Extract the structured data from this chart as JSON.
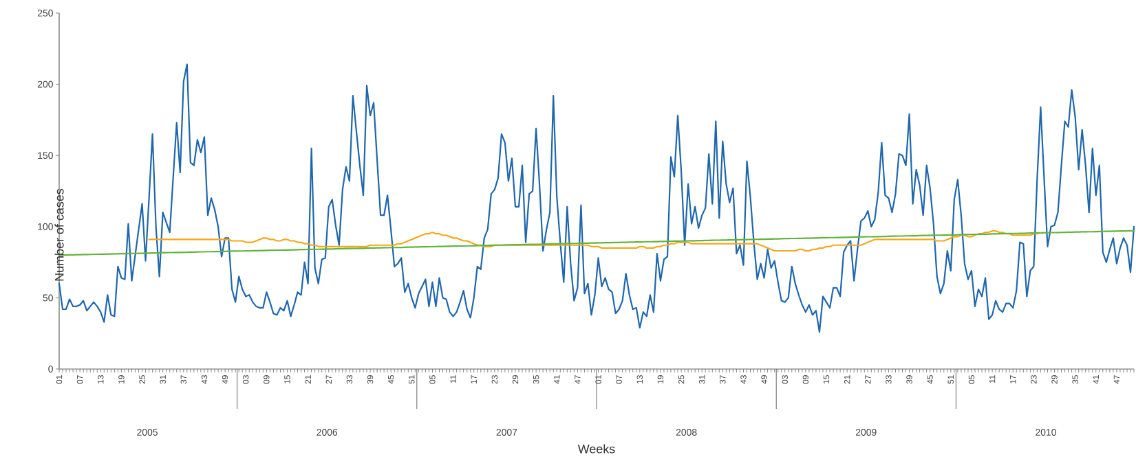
{
  "chart_data": {
    "type": "line",
    "xlabel": "Weeks",
    "ylabel": "Number of cases",
    "categories": [
      "01",
      null,
      null,
      null,
      null,
      null,
      "07",
      null,
      null,
      null,
      null,
      null,
      "13",
      null,
      null,
      null,
      null,
      null,
      "19",
      null,
      null,
      null,
      null,
      null,
      "25",
      null,
      null,
      null,
      null,
      null,
      "31",
      null,
      null,
      null,
      null,
      null,
      "37",
      null,
      null,
      null,
      null,
      null,
      "43",
      null,
      null,
      null,
      null,
      null,
      "49",
      null,
      null,
      null,
      null,
      null,
      "03",
      null,
      null,
      null,
      null,
      null,
      "09",
      null,
      null,
      null,
      null,
      null,
      "15",
      null,
      null,
      null,
      null,
      null,
      "21",
      null,
      null,
      null,
      null,
      null,
      "27",
      null,
      null,
      null,
      null,
      null,
      "33",
      null,
      null,
      null,
      null,
      null,
      "39",
      null,
      null,
      null,
      null,
      null,
      "45",
      null,
      null,
      null,
      null,
      null,
      "51",
      null,
      null,
      null,
      null,
      null,
      "05",
      null,
      null,
      null,
      null,
      null,
      "11",
      null,
      null,
      null,
      null,
      null,
      "17",
      null,
      null,
      null,
      null,
      null,
      "23",
      null,
      null,
      null,
      null,
      null,
      "29",
      null,
      null,
      null,
      null,
      null,
      "35",
      null,
      null,
      null,
      null,
      null,
      "41",
      null,
      null,
      null,
      null,
      null,
      "47",
      null,
      null,
      null,
      null,
      null,
      "01",
      null,
      null,
      null,
      null,
      null,
      "07",
      null,
      null,
      null,
      null,
      null,
      "13",
      null,
      null,
      null,
      null,
      null,
      "19",
      null,
      null,
      null,
      null,
      null,
      "25",
      null,
      null,
      null,
      null,
      null,
      "31",
      null,
      null,
      null,
      null,
      null,
      "37",
      null,
      null,
      null,
      null,
      null,
      "43",
      null,
      null,
      null,
      null,
      null,
      "49",
      null,
      null,
      null,
      null,
      null,
      "03",
      null,
      null,
      null,
      null,
      null,
      "09",
      null,
      null,
      null,
      null,
      null,
      "15",
      null,
      null,
      null,
      null,
      null,
      "21",
      null,
      null,
      null,
      null,
      null,
      "27",
      null,
      null,
      null,
      null,
      null,
      "33",
      null,
      null,
      null,
      null,
      null,
      "39",
      null,
      null,
      null,
      null,
      null,
      "45",
      null,
      null,
      null,
      null,
      null,
      "51",
      null,
      null,
      null,
      null,
      null,
      "05",
      null,
      null,
      null,
      null,
      null,
      "11",
      null,
      null,
      null,
      null,
      null,
      "17",
      null,
      null,
      null,
      null,
      null,
      "23",
      null,
      null,
      null,
      null,
      null,
      "29",
      null,
      null,
      null,
      null,
      null,
      "35",
      null,
      null,
      null,
      null,
      null,
      "41",
      null,
      null,
      null,
      null,
      null,
      "47",
      null,
      null,
      null,
      null,
      null
    ],
    "series": [
      {
        "color": "#1f67ad",
        "values": [
          60,
          42,
          42,
          49,
          44,
          44,
          45,
          48,
          41,
          44,
          47,
          44,
          40,
          33,
          52,
          38,
          37,
          72,
          64,
          63,
          102,
          62,
          80,
          98,
          116,
          76,
          120,
          165,
          100,
          65,
          110,
          103,
          96,
          135,
          173,
          138,
          202,
          214,
          145,
          143,
          161,
          152,
          163,
          108,
          120,
          112,
          100,
          79,
          92,
          92,
          56,
          47,
          65,
          56,
          51,
          52,
          47,
          44,
          43,
          43,
          54,
          47,
          39,
          38,
          43,
          41,
          48,
          37,
          45,
          54,
          52,
          75,
          60,
          155,
          71,
          60,
          77,
          78,
          114,
          119,
          101,
          87,
          126,
          142,
          132,
          192,
          167,
          143,
          122,
          199,
          178,
          187,
          147,
          108,
          108,
          122,
          98,
          72,
          74,
          78,
          54,
          60,
          50,
          43,
          53,
          58,
          63,
          44,
          61,
          44,
          64,
          50,
          49,
          40,
          37,
          40,
          47,
          55,
          42,
          36,
          50,
          72,
          70,
          92,
          98,
          123,
          126,
          134,
          165,
          159,
          132,
          148,
          114,
          114,
          143,
          89,
          123,
          125,
          169,
          129,
          83,
          98,
          110,
          192,
          121,
          89,
          61,
          114,
          74,
          48,
          57,
          115,
          53,
          60,
          38,
          52,
          78,
          58,
          64,
          56,
          54,
          39,
          42,
          48,
          67,
          52,
          42,
          43,
          29,
          40,
          37,
          52,
          40,
          81,
          62,
          77,
          79,
          149,
          135,
          178,
          139,
          87,
          130,
          102,
          114,
          99,
          108,
          113,
          151,
          116,
          174,
          106,
          160,
          130,
          117,
          127,
          81,
          87,
          73,
          146,
          121,
          89,
          63,
          74,
          64,
          84,
          71,
          76,
          61,
          48,
          47,
          50,
          72,
          60,
          52,
          45,
          40,
          45,
          38,
          41,
          26,
          51,
          47,
          43,
          57,
          57,
          51,
          82,
          87,
          90,
          62,
          84,
          104,
          106,
          111,
          100,
          105,
          124,
          159,
          122,
          120,
          110,
          123,
          151,
          150,
          143,
          179,
          116,
          140,
          129,
          108,
          143,
          127,
          102,
          65,
          53,
          60,
          83,
          69,
          119,
          133,
          108,
          74,
          63,
          69,
          44,
          56,
          51,
          64,
          35,
          38,
          48,
          42,
          40,
          46,
          46,
          43,
          55,
          89,
          88,
          51,
          69,
          72,
          134,
          184,
          134,
          86,
          100,
          101,
          110,
          143,
          174,
          170,
          196,
          177,
          140,
          168,
          143,
          110,
          155,
          122,
          143,
          82,
          75,
          84,
          92,
          74,
          85,
          92,
          87,
          68,
          100
        ]
      },
      {
        "color": "#f4a81d",
        "values": [
          null,
          null,
          null,
          null,
          null,
          null,
          null,
          null,
          null,
          null,
          null,
          null,
          null,
          null,
          null,
          null,
          null,
          null,
          null,
          null,
          null,
          null,
          null,
          null,
          null,
          null,
          91,
          91,
          91,
          91,
          91,
          91,
          91,
          91,
          91,
          91,
          91,
          91,
          91,
          91,
          91,
          91,
          91,
          91,
          91,
          91,
          91,
          91,
          91,
          91,
          90,
          90,
          90,
          90,
          89,
          89,
          89,
          90,
          91,
          92,
          92,
          91,
          91,
          90,
          90,
          91,
          91,
          90,
          90,
          89,
          89,
          88,
          88,
          87,
          87,
          86,
          86,
          86,
          86,
          86,
          86,
          86,
          86,
          86,
          86,
          86,
          86,
          86,
          86,
          86,
          87,
          87,
          87,
          87,
          87,
          87,
          87,
          87,
          88,
          88,
          89,
          90,
          91,
          92,
          93,
          94,
          95,
          95,
          96,
          95,
          95,
          94,
          94,
          93,
          92,
          92,
          91,
          90,
          90,
          89,
          88,
          87,
          87,
          86,
          86,
          86,
          87,
          87,
          87,
          87,
          87,
          87,
          87,
          87,
          87,
          87,
          87,
          87,
          87,
          87,
          87,
          87,
          87,
          87,
          87,
          87,
          87,
          87,
          87,
          87,
          87,
          87,
          87,
          87,
          86,
          86,
          86,
          85,
          85,
          85,
          85,
          85,
          85,
          85,
          85,
          85,
          85,
          85,
          86,
          86,
          85,
          85,
          85,
          86,
          86,
          87,
          87,
          88,
          88,
          89,
          89,
          89,
          89,
          88,
          88,
          88,
          88,
          88,
          88,
          88,
          88,
          88,
          88,
          88,
          88,
          88,
          88,
          88,
          88,
          88,
          88,
          88,
          88,
          87,
          86,
          85,
          84,
          83,
          83,
          83,
          83,
          83,
          83,
          83,
          84,
          84,
          83,
          83,
          84,
          84,
          85,
          85,
          86,
          86,
          87,
          87,
          87,
          87,
          87,
          87,
          87,
          87,
          87,
          88,
          89,
          90,
          91,
          91,
          91,
          91,
          91,
          91,
          91,
          91,
          91,
          91,
          91,
          91,
          91,
          91,
          91,
          91,
          91,
          91,
          90,
          90,
          90,
          91,
          92,
          93,
          93,
          94,
          94,
          93,
          93,
          94,
          95,
          95,
          96,
          96,
          97,
          97,
          96,
          96,
          95,
          95,
          94,
          94,
          94,
          94,
          94,
          94,
          95,
          95,
          null,
          null,
          null,
          null,
          null,
          null,
          null,
          null,
          null,
          null,
          null,
          null,
          null,
          null,
          null,
          null,
          null,
          null,
          null,
          null,
          null,
          null,
          null,
          null,
          null,
          null,
          null,
          null
        ]
      },
      {
        "color": "#63b43c",
        "values": [
          80.0,
          80.1,
          80.1,
          80.2,
          80.2,
          80.3,
          80.3,
          80.4,
          80.4,
          80.5,
          80.6,
          80.6,
          80.7,
          80.7,
          80.8,
          80.8,
          80.9,
          80.9,
          81.0,
          81.0,
          81.1,
          81.2,
          81.2,
          81.3,
          81.3,
          81.4,
          81.4,
          81.5,
          81.5,
          81.6,
          81.7,
          81.7,
          81.8,
          81.8,
          81.9,
          81.9,
          82.0,
          82.0,
          82.1,
          82.1,
          82.2,
          82.3,
          82.3,
          82.4,
          82.4,
          82.5,
          82.5,
          82.6,
          82.6,
          82.7,
          82.8,
          82.8,
          82.9,
          82.9,
          83.0,
          83.0,
          83.1,
          83.1,
          83.2,
          83.2,
          83.3,
          83.4,
          83.4,
          83.5,
          83.5,
          83.6,
          83.6,
          83.7,
          83.7,
          83.8,
          83.9,
          83.9,
          84.0,
          84.0,
          84.1,
          84.1,
          84.2,
          84.2,
          84.3,
          84.3,
          84.4,
          84.5,
          84.5,
          84.6,
          84.6,
          84.7,
          84.7,
          84.8,
          84.8,
          84.9,
          85.0,
          85.0,
          85.1,
          85.1,
          85.2,
          85.2,
          85.3,
          85.3,
          85.4,
          85.4,
          85.5,
          85.6,
          85.6,
          85.7,
          85.7,
          85.8,
          85.8,
          85.9,
          85.9,
          86.0,
          86.1,
          86.1,
          86.2,
          86.2,
          86.3,
          86.3,
          86.4,
          86.4,
          86.5,
          86.5,
          86.6,
          86.7,
          86.7,
          86.8,
          86.8,
          86.9,
          86.9,
          87.0,
          87.0,
          87.1,
          87.2,
          87.2,
          87.3,
          87.3,
          87.4,
          87.4,
          87.5,
          87.5,
          87.6,
          87.6,
          87.7,
          87.8,
          87.8,
          87.9,
          87.9,
          88.0,
          88.0,
          88.1,
          88.1,
          88.2,
          88.3,
          88.3,
          88.4,
          88.4,
          88.5,
          88.5,
          88.6,
          88.6,
          88.7,
          88.7,
          88.8,
          88.9,
          88.9,
          89.0,
          89.0,
          89.1,
          89.1,
          89.2,
          89.2,
          89.3,
          89.4,
          89.4,
          89.5,
          89.5,
          89.6,
          89.6,
          89.7,
          89.7,
          89.8,
          89.8,
          89.9,
          90.0,
          90.0,
          90.1,
          90.1,
          90.2,
          90.2,
          90.3,
          90.3,
          90.4,
          90.5,
          90.5,
          90.6,
          90.6,
          90.7,
          90.7,
          90.8,
          90.8,
          90.9,
          90.9,
          91.0,
          91.1,
          91.1,
          91.2,
          91.2,
          91.3,
          91.3,
          91.4,
          91.4,
          91.5,
          91.6,
          91.6,
          91.7,
          91.7,
          91.8,
          91.8,
          91.9,
          91.9,
          92.0,
          92.0,
          92.1,
          92.2,
          92.2,
          92.3,
          92.3,
          92.4,
          92.4,
          92.5,
          92.5,
          92.6,
          92.7,
          92.7,
          92.8,
          92.8,
          92.9,
          92.9,
          93.0,
          93.0,
          93.1,
          93.1,
          93.2,
          93.3,
          93.3,
          93.4,
          93.4,
          93.5,
          93.5,
          93.6,
          93.6,
          93.7,
          93.8,
          93.8,
          93.9,
          93.9,
          94.0,
          94.0,
          94.1,
          94.1,
          94.2,
          94.2,
          94.3,
          94.4,
          94.4,
          94.5,
          94.5,
          94.6,
          94.6,
          94.7,
          94.7,
          94.8,
          94.9,
          94.9,
          95.0,
          95.0,
          95.1,
          95.1,
          95.2,
          95.2,
          95.3,
          95.3,
          95.4,
          95.5,
          95.5,
          95.6,
          95.6,
          95.7,
          95.7,
          95.8,
          95.8,
          95.9,
          96.0,
          96.0,
          96.1,
          96.1,
          96.2,
          96.2,
          96.3,
          96.3,
          96.4,
          96.4,
          96.5,
          96.6,
          96.6,
          96.7,
          96.7,
          96.8,
          96.8,
          96.9,
          96.9,
          97.0,
          97.1,
          97.1
        ]
      }
    ],
    "ylim": [
      0,
      250
    ],
    "yticks": [
      0,
      50,
      100,
      150,
      200,
      250
    ],
    "annotations": [
      "2005",
      "2006",
      "2007",
      "2008",
      "2009",
      "2010"
    ]
  }
}
